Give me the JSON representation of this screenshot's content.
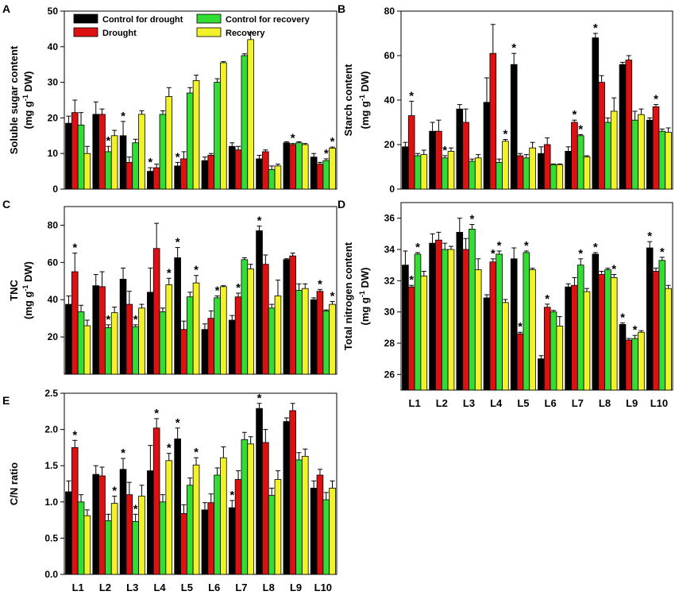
{
  "legend": {
    "items": [
      {
        "name": "Control for drought",
        "color": "#000000"
      },
      {
        "name": "Drought",
        "color": "#dd1111"
      },
      {
        "name": "Control for recovery",
        "color": "#33dd33"
      },
      {
        "name": "Recovery",
        "color": "#f2f22a"
      }
    ]
  },
  "categories": [
    "L1",
    "L2",
    "L3",
    "L4",
    "L5",
    "L6",
    "L7",
    "L8",
    "L9",
    "L10"
  ],
  "chart_data": [
    {
      "id": "A",
      "type": "bar",
      "letter": "A",
      "ylabel": "Soluble sugar content",
      "yunit_pre": "(mg g",
      "yunit_sup": "-1",
      "yunit_post": " DW)",
      "ylim": [
        0,
        50
      ],
      "yticks": [
        0,
        10,
        20,
        30,
        40,
        50
      ],
      "show_xlabels": false,
      "series": [
        {
          "name": "Control for drought",
          "values": [
            18.5,
            21,
            15,
            5,
            6.5,
            8,
            12,
            8.5,
            13,
            9
          ]
        },
        {
          "name": "Drought",
          "values": [
            21.5,
            21,
            7.5,
            6,
            8.5,
            9.5,
            11,
            10.5,
            12.5,
            7
          ]
        },
        {
          "name": "Control for recovery",
          "values": [
            18,
            10.5,
            13,
            21,
            27,
            30,
            37.5,
            5.5,
            13,
            8
          ]
        },
        {
          "name": "Recovery",
          "values": [
            10,
            15,
            21,
            26,
            30.5,
            35.5,
            42,
            6.5,
            12.5,
            11.5
          ]
        }
      ],
      "errors": [
        [
          2,
          3.5,
          4,
          1,
          1,
          1,
          1,
          1,
          0.3,
          1
        ],
        [
          3.5,
          1.5,
          1.5,
          1,
          2,
          0.5,
          1,
          0.5,
          0.3,
          0.5
        ],
        [
          3.5,
          1.5,
          1,
          1,
          1.5,
          1,
          0.5,
          1,
          0.3,
          0.5
        ],
        [
          2,
          1.5,
          1,
          2.5,
          1.5,
          0.3,
          2,
          0.5,
          0.3,
          0.3
        ]
      ],
      "stars": [
        [
          1,
          2
        ],
        [
          2,
          0
        ],
        [
          3,
          0
        ],
        [
          4,
          0
        ],
        [
          8,
          1
        ],
        [
          9,
          2
        ],
        [
          9,
          3
        ]
      ]
    },
    {
      "id": "B",
      "type": "bar",
      "letter": "B",
      "ylabel": "Starch content",
      "yunit_pre": "(mg g",
      "yunit_sup": "-1",
      "yunit_post": " DW)",
      "ylim": [
        0,
        80
      ],
      "yticks": [
        0,
        20,
        40,
        60,
        80
      ],
      "show_xlabels": false,
      "series": [
        {
          "name": "Control for drought",
          "values": [
            19,
            26,
            36,
            39,
            56,
            16,
            17,
            68,
            56,
            31
          ]
        },
        {
          "name": "Drought",
          "values": [
            33,
            26,
            30,
            61,
            15,
            20,
            30,
            48,
            58,
            37
          ]
        },
        {
          "name": "Control for recovery",
          "values": [
            15,
            14,
            12.5,
            12,
            14,
            11,
            24,
            30,
            31,
            26
          ]
        },
        {
          "name": "Recovery",
          "values": [
            15.5,
            17,
            14,
            21.5,
            18.5,
            11,
            14.5,
            35,
            33.5,
            25.5
          ]
        }
      ],
      "errors": [
        [
          2,
          4,
          2,
          11,
          5,
          3,
          2,
          2,
          1,
          1
        ],
        [
          6.5,
          5,
          6,
          13,
          1,
          3,
          1,
          3,
          2,
          1
        ],
        [
          1,
          1,
          1,
          1.5,
          1.5,
          0.3,
          0.5,
          2,
          4,
          1
        ],
        [
          2,
          1.5,
          1.5,
          0.8,
          2.5,
          0.3,
          0.5,
          6,
          2.5,
          2
        ]
      ],
      "stars": [
        [
          0,
          1
        ],
        [
          1,
          2
        ],
        [
          3,
          3
        ],
        [
          4,
          0
        ],
        [
          6,
          1
        ],
        [
          6,
          2
        ],
        [
          7,
          0
        ],
        [
          9,
          1
        ]
      ]
    },
    {
      "id": "C",
      "type": "bar",
      "letter": "C",
      "ylabel": "TNC",
      "yunit_pre": "(mg g",
      "yunit_sup": "-1",
      "yunit_post": " DW)",
      "ylim": [
        0,
        90
      ],
      "yticks": [
        20,
        40,
        60,
        80
      ],
      "show_xlabels": false,
      "series": [
        {
          "name": "Control for drought",
          "values": [
            37.5,
            47.5,
            51,
            44,
            62.5,
            24,
            29,
            77,
            61.5,
            40
          ]
        },
        {
          "name": "Drought",
          "values": [
            55,
            47,
            37.5,
            67.5,
            24,
            30,
            41.5,
            59,
            63.5,
            44.5
          ]
        },
        {
          "name": "Control for recovery",
          "values": [
            33.5,
            25,
            25.5,
            33.5,
            41.5,
            41,
            61.5,
            35.5,
            45,
            34
          ]
        },
        {
          "name": "Recovery",
          "values": [
            26,
            33,
            35.5,
            48,
            49,
            47,
            56.5,
            42,
            46,
            37.5
          ]
        }
      ],
      "errors": [
        [
          4.5,
          6,
          6,
          13,
          5.5,
          3,
          2.5,
          2.5,
          0.5,
          1
        ],
        [
          10,
          8,
          7,
          13.5,
          4.5,
          4,
          2,
          5,
          1.5,
          1
        ],
        [
          3.5,
          1.5,
          1,
          2,
          2.5,
          1,
          1,
          2,
          3.5,
          0.5
        ],
        [
          3,
          3,
          2,
          3.5,
          4,
          0.5,
          2.5,
          8.5,
          2.5,
          1.5
        ]
      ],
      "stars": [
        [
          0,
          1
        ],
        [
          1,
          2
        ],
        [
          2,
          2
        ],
        [
          3,
          3
        ],
        [
          4,
          0
        ],
        [
          4,
          3
        ],
        [
          5,
          2
        ],
        [
          6,
          1
        ],
        [
          7,
          0
        ],
        [
          9,
          1
        ],
        [
          9,
          3
        ]
      ]
    },
    {
      "id": "D",
      "type": "bar",
      "letter": "D",
      "ylabel": "Total nitrogen content",
      "yunit_pre": "(mg g",
      "yunit_sup": "-1",
      "yunit_post": " DW)",
      "ylim": [
        25,
        37
      ],
      "yticks": [
        26,
        28,
        30,
        32,
        34,
        36
      ],
      "show_xlabels": true,
      "series": [
        {
          "name": "Control for drought",
          "values": [
            33,
            34.4,
            35.1,
            30.9,
            33.4,
            27,
            31.6,
            33.7,
            29.2,
            34.1
          ]
        },
        {
          "name": "Drought",
          "values": [
            31.6,
            34.6,
            34,
            33.2,
            28.6,
            30.3,
            31.7,
            32.4,
            28.2,
            32.6
          ]
        },
        {
          "name": "Control for recovery",
          "values": [
            33.7,
            34,
            35.3,
            33.7,
            33.8,
            30,
            33,
            32.7,
            28.3,
            33.3
          ]
        },
        {
          "name": "Recovery",
          "values": [
            32.3,
            34,
            32.7,
            30.6,
            32.7,
            29.1,
            31.3,
            32.2,
            28.7,
            31.5
          ]
        }
      ],
      "errors": [
        [
          0.9,
          0.6,
          0.9,
          0.2,
          0.7,
          0.2,
          0.2,
          0.1,
          0.1,
          0.4
        ],
        [
          0.1,
          0.5,
          0.7,
          0.2,
          0.1,
          0.2,
          0.5,
          0.2,
          0.1,
          0.2
        ],
        [
          0.1,
          0.4,
          0.3,
          0.2,
          0.1,
          0.1,
          0.4,
          0.1,
          0.2,
          0.2
        ],
        [
          0.3,
          0.2,
          0.7,
          0.2,
          0.1,
          0.6,
          0.2,
          0.2,
          0.1,
          0.2
        ]
      ],
      "stars": [
        [
          0,
          1
        ],
        [
          0,
          2
        ],
        [
          2,
          2
        ],
        [
          3,
          1
        ],
        [
          3,
          2
        ],
        [
          4,
          1
        ],
        [
          4,
          2
        ],
        [
          5,
          1
        ],
        [
          6,
          2
        ],
        [
          7,
          0
        ],
        [
          7,
          3
        ],
        [
          8,
          0
        ],
        [
          8,
          2
        ],
        [
          9,
          0
        ],
        [
          9,
          2
        ]
      ]
    },
    {
      "id": "E",
      "type": "bar",
      "letter": "E",
      "ylabel": "C/N ratio",
      "yunit_pre": "",
      "yunit_sup": "",
      "yunit_post": "",
      "ylim": [
        0,
        2.5
      ],
      "yticks": [
        0.0,
        0.5,
        1.0,
        1.5,
        2.0,
        2.5
      ],
      "show_xlabels": true,
      "series": [
        {
          "name": "Control for drought",
          "values": [
            1.14,
            1.38,
            1.45,
            1.43,
            1.87,
            0.89,
            0.92,
            2.29,
            2.11,
            1.19
          ]
        },
        {
          "name": "Drought",
          "values": [
            1.75,
            1.36,
            1.1,
            2.02,
            0.84,
            0.99,
            1.31,
            1.82,
            2.26,
            1.37
          ]
        },
        {
          "name": "Control for recovery",
          "values": [
            1.0,
            0.74,
            0.73,
            1.0,
            1.23,
            1.37,
            1.86,
            1.09,
            1.58,
            1.03
          ]
        },
        {
          "name": "Recovery",
          "values": [
            0.81,
            0.98,
            1.08,
            1.57,
            1.51,
            1.61,
            1.8,
            1.31,
            1.63,
            1.19
          ]
        }
      ],
      "errors": [
        [
          0.15,
          0.12,
          0.15,
          0.35,
          0.15,
          0.1,
          0.1,
          0.07,
          0.05,
          0.1
        ],
        [
          0.1,
          0.12,
          0.17,
          0.13,
          0.12,
          0.12,
          0.12,
          0.18,
          0.1,
          0.08
        ],
        [
          0.1,
          0.09,
          0.1,
          0.1,
          0.1,
          0.1,
          0.1,
          0.1,
          0.1,
          0.1
        ],
        [
          0.08,
          0.1,
          0.15,
          0.1,
          0.1,
          0.15,
          0.1,
          0.12,
          0.1,
          0.1
        ]
      ],
      "stars": [
        [
          0,
          1
        ],
        [
          1,
          3
        ],
        [
          2,
          0
        ],
        [
          2,
          2
        ],
        [
          3,
          1
        ],
        [
          3,
          3
        ],
        [
          4,
          0
        ],
        [
          4,
          3
        ],
        [
          6,
          0
        ],
        [
          7,
          0
        ]
      ]
    }
  ]
}
